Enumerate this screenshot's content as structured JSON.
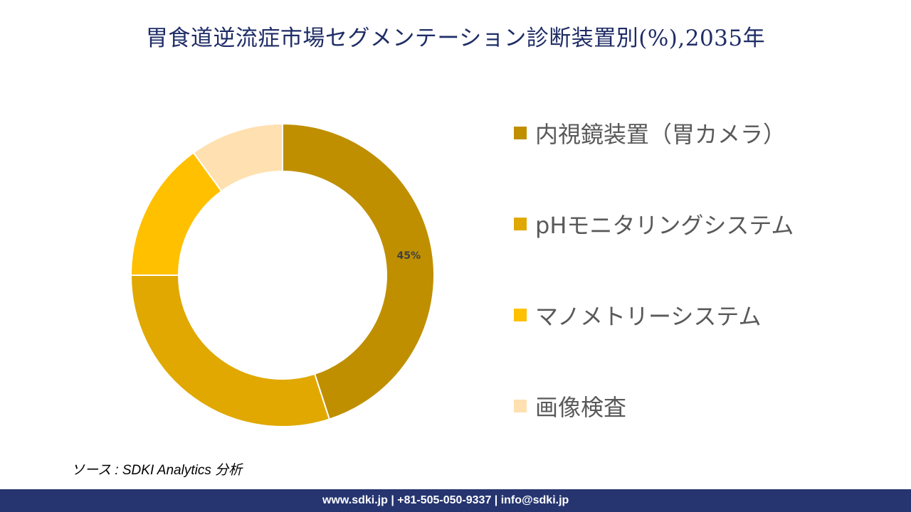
{
  "chart_data": {
    "type": "pie",
    "variant": "donut",
    "title": "胃食道逆流症市場セグメンテーション診断装置別(%),2035年",
    "categories": [
      "内視鏡装置（胃カメラ）",
      "pHモニタリングシステム",
      "マノメトリーシステム",
      "画像検査"
    ],
    "values": [
      45,
      30,
      15,
      10
    ],
    "data_labels": [
      "45%",
      "",
      "",
      ""
    ],
    "colors": [
      "#BF8F00",
      "#E0A800",
      "#FFC000",
      "#FFE0B0"
    ],
    "legend_position": "right"
  },
  "source": "ソース : SDKI Analytics 分析",
  "footer": "www.sdki.jp | +81-505-050-9337 | info@sdki.jp"
}
